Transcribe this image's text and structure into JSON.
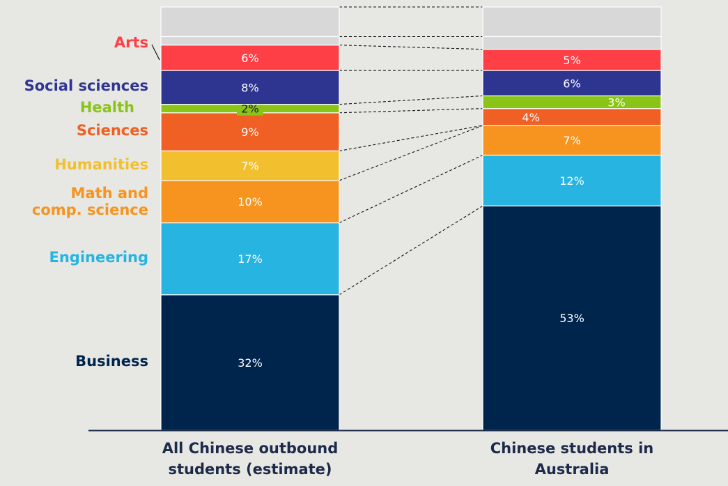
{
  "chart_data": {
    "type": "bar",
    "stacked": true,
    "normalized": true,
    "columns": [
      "All Chinese outbound students (estimate)",
      "Chinese students in Australia"
    ],
    "series": [
      {
        "name": "Business",
        "color": "#00254d",
        "values": [
          32,
          53
        ],
        "labels": [
          "32%",
          "53%"
        ]
      },
      {
        "name": "Engineering",
        "color": "#27b4e1",
        "values": [
          17,
          12
        ],
        "labels": [
          "17%",
          "12%"
        ]
      },
      {
        "name": "Math and comp. science",
        "color": "#f6941f",
        "values": [
          10,
          7
        ],
        "labels": [
          "10%",
          "7%"
        ]
      },
      {
        "name": "Humanities",
        "color": "#f2c02f",
        "values": [
          7,
          0
        ],
        "labels": [
          "7%",
          ""
        ]
      },
      {
        "name": "Sciences",
        "color": "#f05f23",
        "values": [
          9,
          4
        ],
        "labels": [
          "9%",
          "4%"
        ]
      },
      {
        "name": "Health",
        "color": "#8ac417",
        "values": [
          2,
          3
        ],
        "labels": [
          "2%",
          "3%"
        ]
      },
      {
        "name": "Social sciences",
        "color": "#2e3591",
        "values": [
          8,
          6
        ],
        "labels": [
          "8%",
          "6%"
        ]
      },
      {
        "name": "Arts",
        "color": "#ff3f46",
        "values": [
          6,
          5
        ],
        "labels": [
          "6%",
          "5%"
        ]
      },
      {
        "name": "",
        "color": "#d8d8d8",
        "values": [
          2,
          3
        ],
        "labels": [
          "",
          ""
        ]
      },
      {
        "name": "",
        "color": "#d8d8d8",
        "values": [
          7,
          7
        ],
        "labels": [
          "",
          ""
        ]
      }
    ]
  },
  "category_labels": [
    {
      "key": "Arts",
      "text": "Arts",
      "color": "#ff3f46"
    },
    {
      "key": "Social",
      "text": "Social sciences",
      "color": "#2e3591"
    },
    {
      "key": "Health",
      "text": "Health",
      "color": "#8ac417"
    },
    {
      "key": "Sciences",
      "text": "Sciences",
      "color": "#f05f23"
    },
    {
      "key": "Humanities",
      "text": "Humanities",
      "color": "#f2c02f"
    },
    {
      "key": "Math",
      "text": "Math and\ncomp. science",
      "color": "#f6941f"
    },
    {
      "key": "Engineering",
      "text": "Engineering",
      "color": "#27b4e1"
    },
    {
      "key": "Business",
      "text": "Business",
      "color": "#00254d"
    }
  ],
  "column_labels": [
    "All Chinese outbound\nstudents (estimate)",
    "Chinese students in Australia"
  ]
}
